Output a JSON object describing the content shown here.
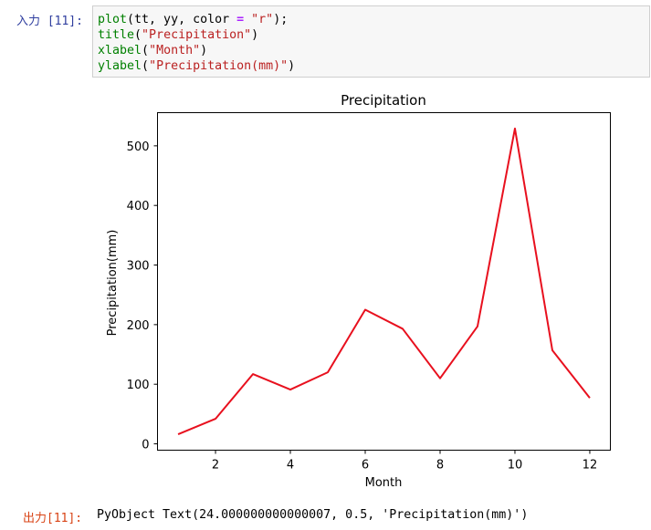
{
  "input_prompt": "入力 [11]:",
  "code_lines": [
    {
      "fn": "plot",
      "rest_pre": "(tt, yy, color ",
      "op": "=",
      "rest_mid": " ",
      "str": "\"r\"",
      "rest_post": ");"
    },
    {
      "fn": "title",
      "rest_pre": "(",
      "str": "\"Precipitation\"",
      "rest_post": ")"
    },
    {
      "fn": "xlabel",
      "rest_pre": "(",
      "str": "\"Month\"",
      "rest_post": ")"
    },
    {
      "fn": "ylabel",
      "rest_pre": "(",
      "str": "\"Precipitation(mm)\"",
      "rest_post": ")"
    }
  ],
  "output_prompt": "出力[11]:",
  "output_text": "PyObject Text(24.000000000000007, 0.5, 'Precipitation(mm)')",
  "colors": {
    "line": "#e8101e",
    "input_prompt": "#303F9F",
    "output_prompt": "#D84315"
  },
  "chart_data": {
    "type": "line",
    "title": "Precipitation",
    "xlabel": "Month",
    "ylabel": "Precipitation(mm)",
    "x": [
      1,
      2,
      3,
      4,
      5,
      6,
      7,
      8,
      9,
      10,
      11,
      12
    ],
    "series": [
      {
        "values": [
          16,
          42,
          117,
          91,
          120,
          225,
          193,
          110,
          197,
          529,
          157,
          77
        ]
      }
    ],
    "xlim": [
      0.45,
      12.55
    ],
    "ylim": [
      -10.65,
      555.65
    ],
    "xticks": [
      2,
      4,
      6,
      8,
      10,
      12
    ],
    "yticks": [
      0,
      100,
      200,
      300,
      400,
      500
    ],
    "grid": false
  }
}
